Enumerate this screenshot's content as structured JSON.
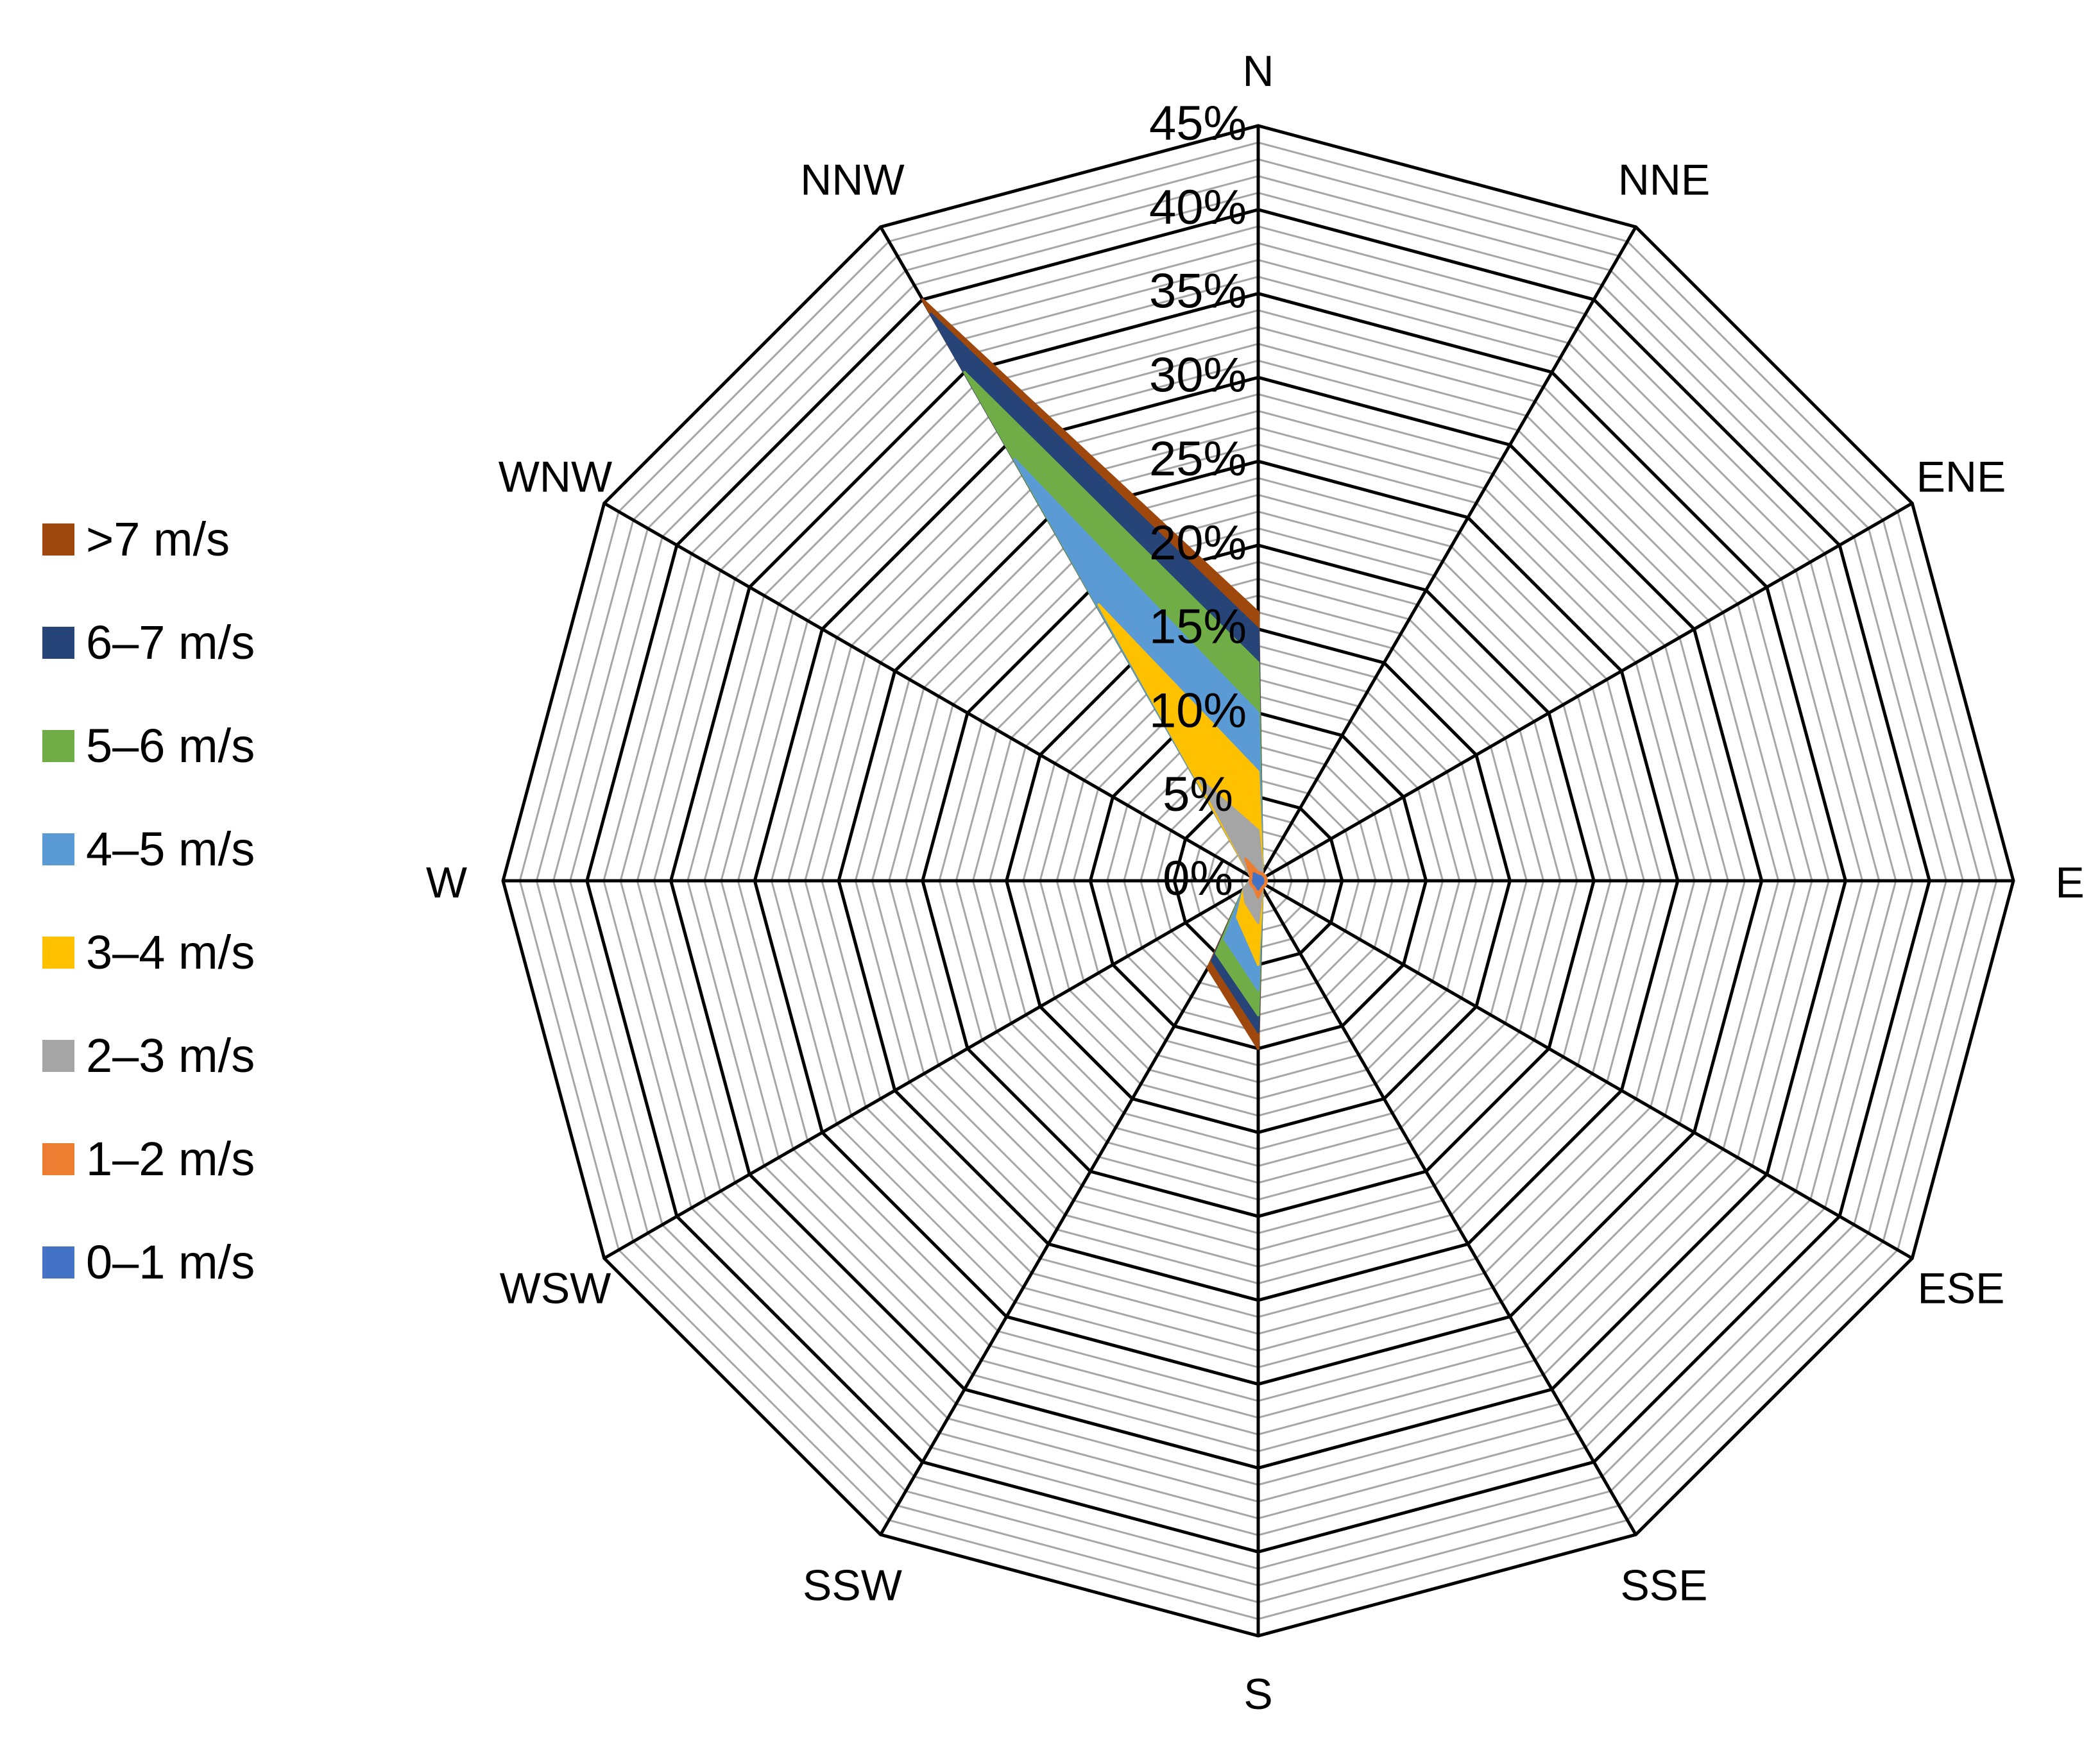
{
  "chart_data": {
    "type": "radar",
    "title": "",
    "directions": [
      "N",
      "NNE",
      "ENE",
      "E",
      "ESE",
      "SSE",
      "S",
      "SSW",
      "WSW",
      "W",
      "WNW",
      "NNW"
    ],
    "rlim": [
      0,
      45
    ],
    "ticks": [
      0,
      5,
      10,
      15,
      20,
      25,
      30,
      35,
      40,
      45
    ],
    "tick_labels": [
      "0%",
      "5%",
      "10%",
      "15%",
      "20%",
      "25%",
      "30%",
      "35%",
      "40%",
      "45%"
    ],
    "minor_step": 1,
    "legend_position": "left",
    "series": [
      {
        "name": ">7 m/s",
        "color": "#9E480E",
        "values": [
          16.0,
          0.5,
          0.5,
          0.5,
          0.5,
          0.5,
          10.0,
          6.0,
          1.0,
          0.5,
          0.5,
          40.0
        ]
      },
      {
        "name": "6–7 m/s",
        "color": "#264478",
        "values": [
          15.0,
          0.5,
          0.5,
          0.5,
          0.5,
          0.5,
          9.0,
          5.5,
          1.0,
          0.5,
          0.5,
          39.0
        ]
      },
      {
        "name": "5–6 m/s",
        "color": "#70AD47",
        "values": [
          13.0,
          0.5,
          0.5,
          0.5,
          0.5,
          0.5,
          8.0,
          5.0,
          1.0,
          0.5,
          0.5,
          35.0
        ]
      },
      {
        "name": "4–5 m/s",
        "color": "#5B9BD5",
        "values": [
          10.0,
          0.5,
          0.5,
          0.5,
          0.5,
          0.5,
          6.5,
          4.0,
          1.0,
          0.5,
          0.5,
          29.0
        ]
      },
      {
        "name": "3–4 m/s",
        "color": "#FFC000",
        "values": [
          6.5,
          0.5,
          0.5,
          0.5,
          0.5,
          0.5,
          5.0,
          2.5,
          1.0,
          0.5,
          0.5,
          19.0
        ]
      },
      {
        "name": "2–3 m/s",
        "color": "#A5A5A5",
        "values": [
          3.0,
          0.5,
          0.5,
          0.5,
          0.5,
          0.5,
          2.5,
          1.5,
          1.0,
          0.5,
          0.5,
          7.0
        ]
      },
      {
        "name": "1–2 m/s",
        "color": "#ED7D31",
        "values": [
          0.5,
          0.5,
          0.5,
          0.5,
          0.5,
          0.5,
          1.0,
          0.5,
          0.5,
          0.5,
          0.5,
          1.5
        ]
      },
      {
        "name": "0–1 m/s",
        "color": "#4472C4",
        "values": [
          0.3,
          0.3,
          0.3,
          0.3,
          0.3,
          0.3,
          0.5,
          0.3,
          0.3,
          0.3,
          0.3,
          0.5
        ]
      }
    ]
  }
}
